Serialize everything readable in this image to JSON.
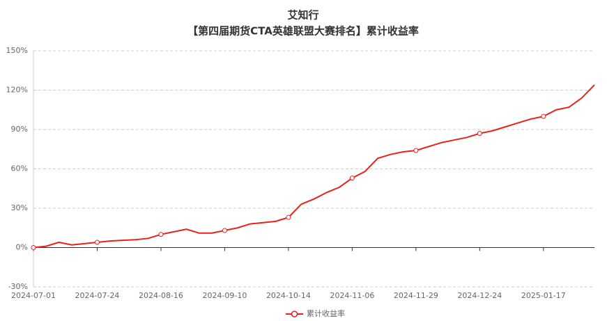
{
  "chart_data": {
    "type": "line",
    "title": "艾知行",
    "subtitle": "【第四届期货CTA英雄联盟大赛排名】累计收益率",
    "categories": [
      "2024-07-01",
      null,
      null,
      null,
      null,
      "2024-07-24",
      null,
      null,
      null,
      null,
      "2024-08-16",
      null,
      null,
      null,
      null,
      "2024-09-10",
      null,
      null,
      null,
      null,
      "2024-10-14",
      null,
      null,
      null,
      null,
      "2024-11-06",
      null,
      null,
      null,
      null,
      "2024-11-29",
      null,
      null,
      null,
      null,
      "2024-12-24",
      null,
      null,
      null,
      null,
      "2025-01-17",
      null,
      null,
      null,
      null
    ],
    "series": [
      {
        "name": "累计收益率",
        "color": "#e8211a",
        "values": [
          0,
          1,
          4,
          2,
          3,
          4,
          5,
          5.5,
          6,
          7,
          10,
          12,
          14,
          11,
          11,
          13,
          15,
          18,
          19,
          20,
          23,
          33,
          37,
          42,
          46,
          53,
          58,
          68,
          71,
          73,
          74,
          77,
          80,
          82,
          84,
          87,
          89,
          92,
          95,
          98,
          100,
          105,
          107,
          114,
          124
        ]
      }
    ],
    "ylim": [
      -30,
      150
    ],
    "yticks": [
      {
        "value": -30,
        "label": "-30%"
      },
      {
        "value": 0,
        "label": "0%"
      },
      {
        "value": 30,
        "label": "30%"
      },
      {
        "value": 60,
        "label": "60%"
      },
      {
        "value": 90,
        "label": "90%"
      },
      {
        "value": 120,
        "label": "120%"
      },
      {
        "value": 150,
        "label": "150%"
      }
    ],
    "grid": true,
    "legend": "bottom"
  }
}
